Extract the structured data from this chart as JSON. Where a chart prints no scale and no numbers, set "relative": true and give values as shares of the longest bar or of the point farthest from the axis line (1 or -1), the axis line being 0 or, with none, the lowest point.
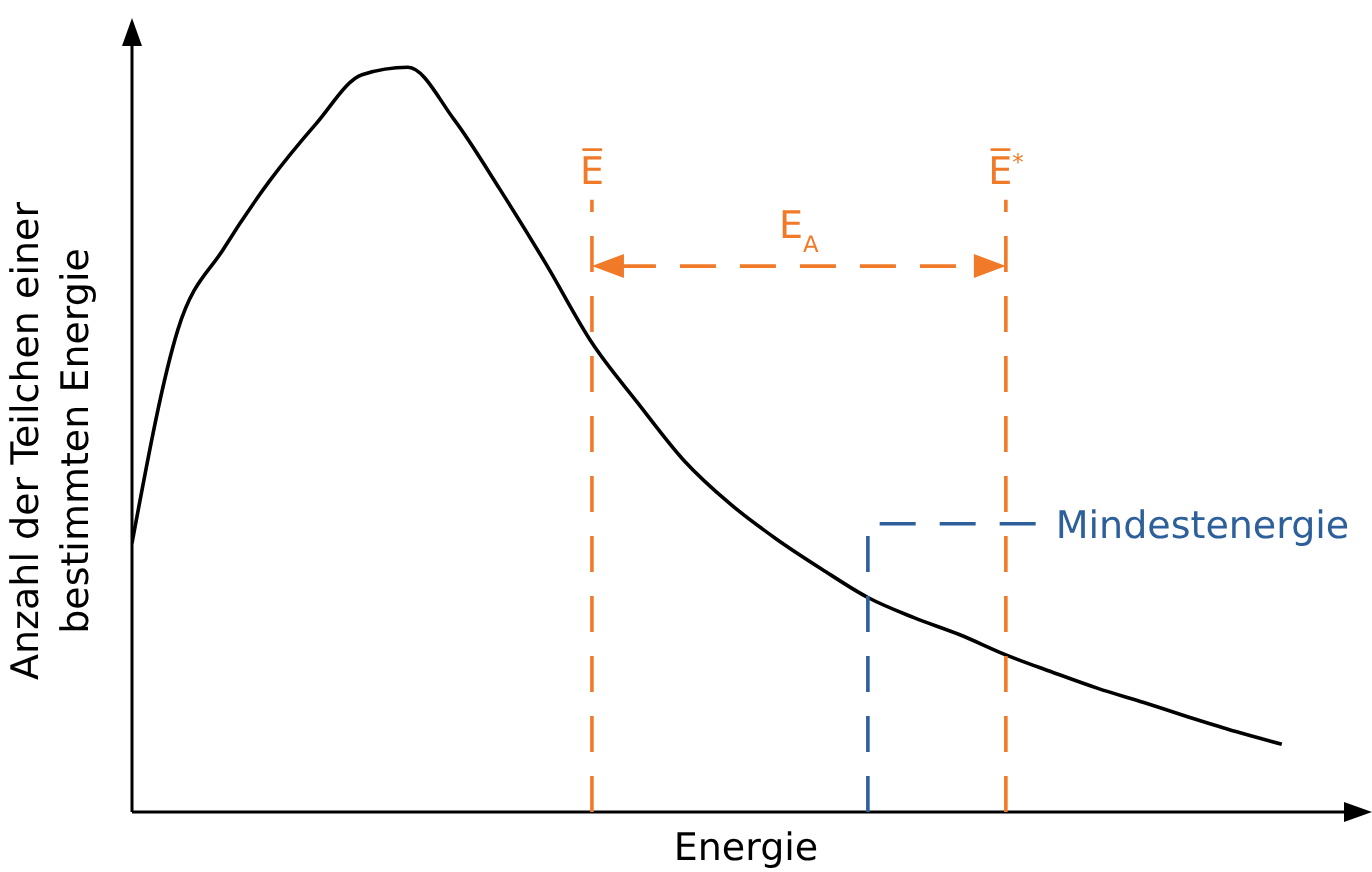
{
  "chart_data": {
    "type": "line",
    "relative": true,
    "xlabel": "Energie",
    "ylabel": "Anzahl der Teilchen einer bestimmten Energie",
    "categories": [
      null,
      null,
      null,
      null,
      null,
      null,
      null,
      null,
      null,
      null,
      null,
      null,
      null,
      null,
      null,
      null,
      null,
      null,
      null,
      null,
      null,
      null,
      null,
      null,
      null,
      null
    ],
    "series": [
      {
        "color": "#000000",
        "values": [
          0.361,
          0.648,
          0.757,
          0.848,
          0.924,
          0.99,
          1,
          0.93,
          0.836,
          0.736,
          0.63,
          0.549,
          0.472,
          0.414,
          0.367,
          0.326,
          0.288,
          0.261,
          0.238,
          0.211,
          0.188,
          0.166,
          0.147,
          0.127,
          0.108,
          0.091
        ]
      }
    ],
    "annotations": [
      "E̅",
      "E̅$^{*}$",
      "E$_{A}$",
      "Mindestenergie"
    ],
    "marker": "none",
    "line_style": "solid"
  }
}
